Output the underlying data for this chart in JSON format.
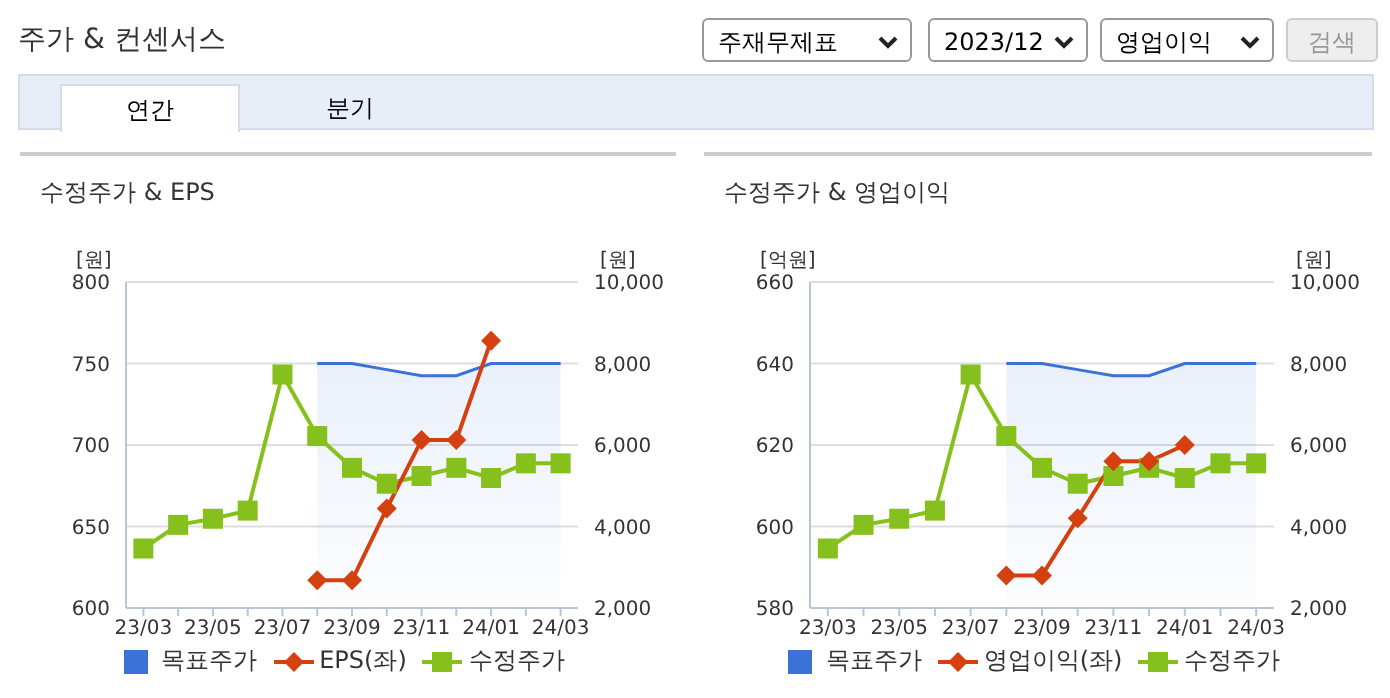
{
  "chart_data": [
    {
      "type": "other",
      "title": "주가 & 컨센서스",
      "annotations": [
        "주재무제표",
        "2023/12",
        "영업이익",
        "검색",
        "연간",
        "분기"
      ]
    },
    {
      "type": "line",
      "title": "수정주가 & EPS",
      "ylabel": "[원]",
      "y2label": "[원]",
      "categories": [
        "23/03",
        null,
        "23/05",
        null,
        "23/07",
        null,
        "23/09",
        null,
        "23/11",
        null,
        "24/01",
        null,
        "24/03"
      ],
      "ylim": [
        600,
        800
      ],
      "yticks": [
        600,
        650,
        700,
        750,
        800
      ],
      "y2lim": [
        2000,
        10000
      ],
      "y2ticks": [
        {
          "value": 2000,
          "label": "2,000"
        },
        {
          "value": 4000,
          "label": "4,000"
        },
        {
          "value": 6000,
          "label": "6,000"
        },
        {
          "value": 8000,
          "label": "8,000"
        },
        {
          "value": 10000,
          "label": "10,000"
        }
      ],
      "grid": "y",
      "legend": "bottom",
      "series": [
        {
          "name": "목표주가",
          "type": "area",
          "axis": "y2",
          "color": "#3a72d8",
          "marker": "none",
          "values": [
            null,
            null,
            null,
            null,
            null,
            8000,
            8000,
            7850,
            7700,
            7700,
            8000,
            8000,
            8000
          ]
        },
        {
          "name": "EPS(좌)",
          "type": "line",
          "color": "#d4400f",
          "marker": "diamond",
          "values": [
            null,
            null,
            null,
            null,
            null,
            617,
            617,
            661,
            703,
            703,
            764,
            null,
            null
          ]
        },
        {
          "name": "수정주가",
          "type": "line",
          "axis": "y2",
          "color": "#86c01c",
          "marker": "square",
          "values": [
            3460,
            4040,
            4190,
            4390,
            7730,
            6220,
            5440,
            5050,
            5240,
            5440,
            5190,
            5550,
            5550
          ]
        }
      ]
    },
    {
      "type": "line",
      "title": "수정주가 & 영업이익",
      "ylabel": "[억원]",
      "y2label": "[원]",
      "categories": [
        "23/03",
        null,
        "23/05",
        null,
        "23/07",
        null,
        "23/09",
        null,
        "23/11",
        null,
        "24/01",
        null,
        "24/03"
      ],
      "ylim": [
        580,
        660
      ],
      "yticks": [
        580,
        600,
        620,
        640,
        660
      ],
      "y2lim": [
        2000,
        10000
      ],
      "y2ticks": [
        {
          "value": 2000,
          "label": "2,000"
        },
        {
          "value": 4000,
          "label": "4,000"
        },
        {
          "value": 6000,
          "label": "6,000"
        },
        {
          "value": 8000,
          "label": "8,000"
        },
        {
          "value": 10000,
          "label": "10,000"
        }
      ],
      "grid": "y",
      "legend": "bottom",
      "series": [
        {
          "name": "목표주가",
          "type": "area",
          "axis": "y2",
          "color": "#3a72d8",
          "marker": "none",
          "values": [
            null,
            null,
            null,
            null,
            null,
            8000,
            8000,
            7850,
            7700,
            7700,
            8000,
            8000,
            8000
          ]
        },
        {
          "name": "영업이익(좌)",
          "type": "line",
          "color": "#d4400f",
          "marker": "diamond",
          "values": [
            null,
            null,
            null,
            null,
            null,
            588,
            588,
            602,
            616,
            616,
            620,
            null,
            null
          ]
        },
        {
          "name": "수정주가",
          "type": "line",
          "axis": "y2",
          "color": "#86c01c",
          "marker": "square",
          "values": [
            3460,
            4040,
            4190,
            4390,
            7730,
            6220,
            5440,
            5050,
            5240,
            5440,
            5190,
            5550,
            5550
          ]
        }
      ]
    }
  ]
}
